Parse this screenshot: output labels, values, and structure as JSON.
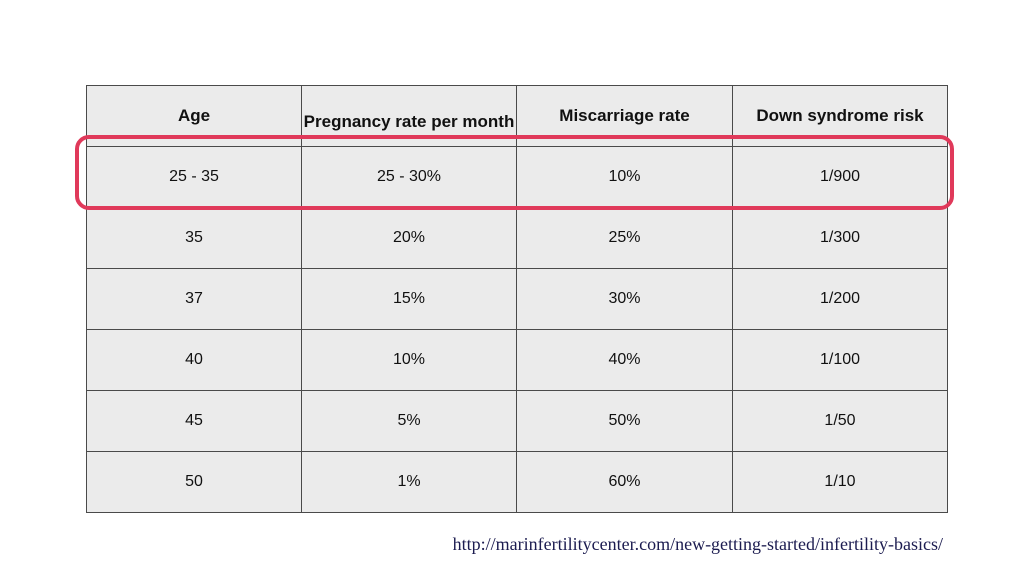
{
  "table": {
    "headers": [
      "Age",
      "Pregnancy rate per month",
      "Miscarriage rate",
      "Down syndrome risk"
    ],
    "rows": [
      [
        "25 - 35",
        "25 - 30%",
        "10%",
        "1/900"
      ],
      [
        "35",
        "20%",
        "25%",
        "1/300"
      ],
      [
        "37",
        "15%",
        "30%",
        "1/200"
      ],
      [
        "40",
        "10%",
        "40%",
        "1/100"
      ],
      [
        "45",
        "5%",
        "50%",
        "1/50"
      ],
      [
        "50",
        "1%",
        "60%",
        "1/10"
      ]
    ],
    "highlighted_row_index": 0
  },
  "source": {
    "url_text": "http://marinfertilitycenter.com/new-getting-started/infertility-basics/"
  },
  "colors": {
    "highlight": "#e0395a",
    "table_background": "#ebebeb",
    "url_text": "#1c1c50"
  }
}
